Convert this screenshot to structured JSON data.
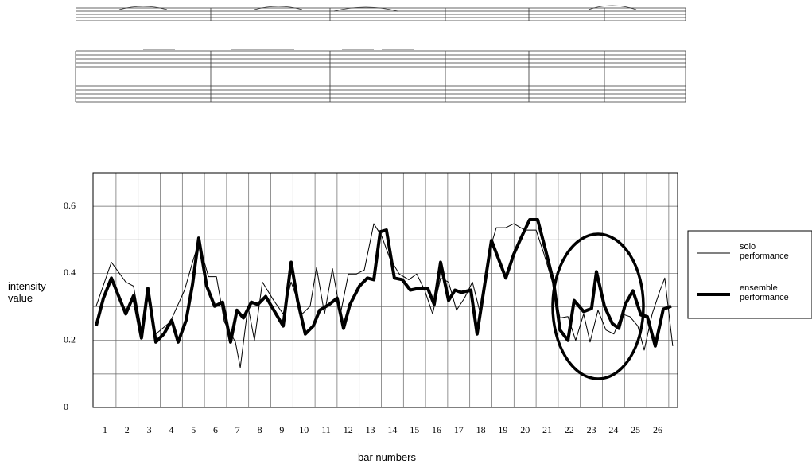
{
  "chart_data": {
    "type": "line",
    "y_label": "intensity value",
    "x_label": "bar numbers",
    "xlim": [
      0.46,
      26.9
    ],
    "ylim": [
      0,
      0.7
    ],
    "xticks": [
      1,
      2,
      3,
      4,
      5,
      6,
      7,
      8,
      9,
      10,
      11,
      12,
      13,
      14,
      15,
      16,
      17,
      18,
      19,
      20,
      21,
      22,
      23,
      24,
      25,
      26
    ],
    "minor_xticks": [
      1.5,
      2.5,
      3.5,
      4.5,
      5.5,
      6.5,
      7.5,
      8.5,
      9.5,
      10.5,
      11.5,
      12.5,
      13.5,
      14.5,
      15.5,
      16.5,
      17.5,
      18.5,
      19.5,
      20.5,
      21.5,
      22.5,
      23.5,
      24.5,
      25.5,
      26.5
    ],
    "yticks": [
      0,
      0.2,
      0.4,
      0.6
    ],
    "minor_yticks": [
      0.1,
      0.3,
      0.5,
      0.7
    ],
    "grid": true,
    "legend": "right",
    "series": [
      {
        "name": "solo performance",
        "color": "#000000",
        "width": 1,
        "x": [
          0.6,
          1.29,
          1.94,
          2.29,
          2.65,
          2.94,
          3.3,
          3.95,
          4.6,
          4.96,
          5.24,
          5.68,
          6.04,
          6.4,
          6.9,
          7.12,
          7.47,
          7.76,
          8.12,
          8.63,
          9.06,
          9.42,
          9.92,
          10.28,
          10.57,
          10.93,
          11.29,
          11.65,
          12.01,
          12.37,
          12.73,
          13.16,
          13.52,
          13.88,
          14.31,
          14.74,
          15.1,
          15.46,
          15.82,
          16.18,
          16.54,
          16.9,
          17.26,
          17.62,
          17.98,
          18.34,
          18.7,
          19.13,
          19.49,
          19.99,
          20.5,
          20.86,
          21.29,
          21.58,
          21.94,
          22.29,
          22.65,
          22.94,
          23.3,
          23.66,
          24.02,
          24.38,
          24.74,
          25.1,
          25.39,
          25.75,
          26.11,
          26.32,
          26.68
        ],
        "values": [
          0.302,
          0.433,
          0.374,
          0.362,
          0.231,
          0.326,
          0.219,
          0.255,
          0.35,
          0.433,
          0.493,
          0.39,
          0.39,
          0.255,
          0.195,
          0.119,
          0.302,
          0.2,
          0.374,
          0.319,
          0.279,
          0.374,
          0.279,
          0.302,
          0.417,
          0.279,
          0.414,
          0.279,
          0.398,
          0.398,
          0.41,
          0.548,
          0.51,
          0.445,
          0.398,
          0.381,
          0.398,
          0.35,
          0.279,
          0.386,
          0.374,
          0.29,
          0.326,
          0.374,
          0.279,
          0.457,
          0.536,
          0.536,
          0.548,
          0.529,
          0.529,
          0.457,
          0.362,
          0.267,
          0.271,
          0.2,
          0.279,
          0.195,
          0.29,
          0.231,
          0.219,
          0.279,
          0.271,
          0.243,
          0.171,
          0.279,
          0.35,
          0.386,
          0.183
        ]
      },
      {
        "name": "ensemble performance",
        "color": "#000000",
        "width": 4,
        "x": [
          0.6,
          0.93,
          1.29,
          1.94,
          2.29,
          2.65,
          2.94,
          3.3,
          3.66,
          4.02,
          4.31,
          4.67,
          4.96,
          5.24,
          5.6,
          5.96,
          6.32,
          6.68,
          6.97,
          7.26,
          7.62,
          7.91,
          8.27,
          8.7,
          9.06,
          9.42,
          9.71,
          10.06,
          10.42,
          10.71,
          11.14,
          11.5,
          11.79,
          12.08,
          12.51,
          12.87,
          13.16,
          13.45,
          13.73,
          14.09,
          14.45,
          14.81,
          15.17,
          15.6,
          15.89,
          16.18,
          16.54,
          16.83,
          17.12,
          17.55,
          17.83,
          18.48,
          19.13,
          19.49,
          19.85,
          20.21,
          20.57,
          20.93,
          21.29,
          21.58,
          21.94,
          22.22,
          22.65,
          23.01,
          23.23,
          23.59,
          23.95,
          24.24,
          24.53,
          24.88,
          25.24,
          25.53,
          25.89,
          26.25,
          26.61
        ],
        "values": [
          0.243,
          0.326,
          0.386,
          0.279,
          0.333,
          0.207,
          0.355,
          0.195,
          0.219,
          0.26,
          0.195,
          0.26,
          0.367,
          0.505,
          0.362,
          0.302,
          0.314,
          0.195,
          0.29,
          0.267,
          0.314,
          0.307,
          0.331,
          0.283,
          0.243,
          0.433,
          0.319,
          0.219,
          0.243,
          0.29,
          0.307,
          0.326,
          0.236,
          0.307,
          0.362,
          0.386,
          0.381,
          0.524,
          0.529,
          0.386,
          0.381,
          0.35,
          0.355,
          0.355,
          0.307,
          0.433,
          0.319,
          0.35,
          0.343,
          0.35,
          0.219,
          0.498,
          0.386,
          0.457,
          0.51,
          0.56,
          0.56,
          0.469,
          0.374,
          0.231,
          0.2,
          0.319,
          0.286,
          0.295,
          0.405,
          0.302,
          0.25,
          0.236,
          0.307,
          0.348,
          0.276,
          0.271,
          0.183,
          0.293,
          0.302
        ]
      }
    ]
  }
}
